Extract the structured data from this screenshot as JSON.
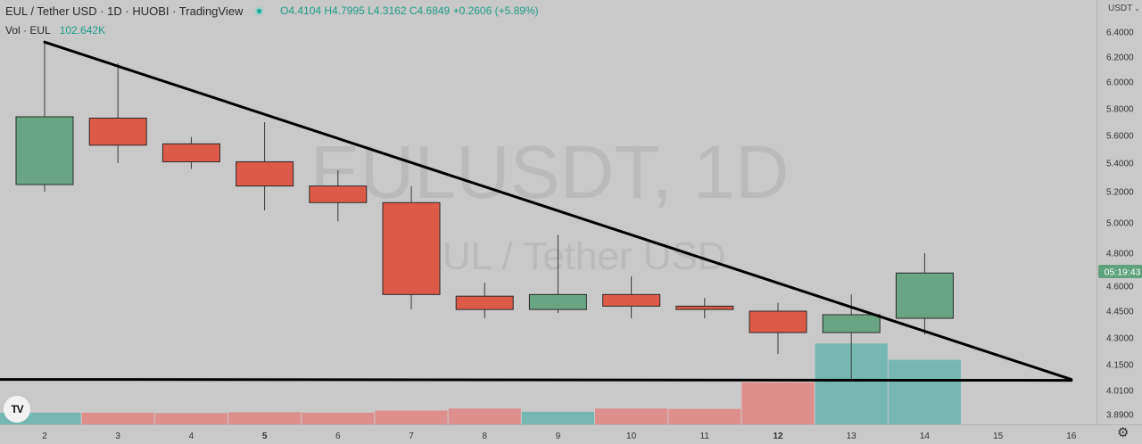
{
  "header": {
    "symbol_line": "EUL / Tether USD · 1D · HUOBI · TradingView",
    "open": "O4.4104",
    "high": "H4.7995",
    "low": "L4.3162",
    "close": "C4.6849",
    "change": "+0.2606 (+5.89%)",
    "volume_label": "Vol · EUL",
    "volume_value": "102.642K"
  },
  "currency": "USDT",
  "price_tag": "05:19:43",
  "watermark": {
    "line1": "EULUSDT, 1D",
    "line2": "EUL / Tether USD"
  },
  "logo_text": "TV",
  "colors": {
    "background": "#c9c9c9",
    "up": "#6aa583",
    "down": "#de5a48",
    "vol_up": "#76b7b2",
    "vol_down": "#de8f8d",
    "trendline": "#000000",
    "price_tag": "#5da27c"
  },
  "chart_data": {
    "type": "candlestick",
    "x_tick_labels": [
      "2",
      "3",
      "4",
      "5",
      "6",
      "7",
      "8",
      "9",
      "10",
      "11",
      "12",
      "13",
      "14",
      "15",
      "16"
    ],
    "x_tick_bold": [
      "5",
      "12"
    ],
    "y_tick_labels": [
      "6.4000",
      "6.2000",
      "6.0000",
      "5.8000",
      "5.6000",
      "5.4000",
      "5.2000",
      "5.0000",
      "4.8000",
      "4.6000",
      "4.4500",
      "4.3000",
      "4.1500",
      "4.0100",
      "3.8900"
    ],
    "candles": [
      {
        "day": "2",
        "open": 5.25,
        "high": 6.33,
        "low": 5.2,
        "close": 5.74
      },
      {
        "day": "3",
        "open": 5.73,
        "high": 6.15,
        "low": 5.4,
        "close": 5.53
      },
      {
        "day": "4",
        "open": 5.54,
        "high": 5.59,
        "low": 5.36,
        "close": 5.41
      },
      {
        "day": "5",
        "open": 5.41,
        "high": 5.7,
        "low": 5.08,
        "close": 5.24
      },
      {
        "day": "6",
        "open": 5.24,
        "high": 5.35,
        "low": 5.01,
        "close": 5.13
      },
      {
        "day": "7",
        "open": 5.13,
        "high": 5.24,
        "low": 4.46,
        "close": 4.55
      },
      {
        "day": "8",
        "open": 4.54,
        "high": 4.62,
        "low": 4.41,
        "close": 4.46
      },
      {
        "day": "9",
        "open": 4.46,
        "high": 4.92,
        "low": 4.44,
        "close": 4.55
      },
      {
        "day": "10",
        "open": 4.55,
        "high": 4.66,
        "low": 4.41,
        "close": 4.48
      },
      {
        "day": "11",
        "open": 4.48,
        "high": 4.53,
        "low": 4.41,
        "close": 4.46
      },
      {
        "day": "12",
        "open": 4.45,
        "high": 4.5,
        "low": 4.21,
        "close": 4.33
      },
      {
        "day": "13",
        "open": 4.33,
        "high": 4.55,
        "low": 4.07,
        "close": 4.43
      },
      {
        "day": "14",
        "open": 4.41,
        "high": 4.8,
        "low": 4.32,
        "close": 4.68
      }
    ],
    "volume_relative": [
      0.28,
      0.28,
      0.27,
      0.29,
      0.28,
      0.33,
      0.38,
      0.3,
      0.38,
      0.37,
      1.0,
      1.93,
      1.54
    ],
    "trendlines": [
      {
        "x1": "2",
        "y1": 6.32,
        "x2": "16",
        "y2": 4.07
      },
      {
        "x1": "1",
        "y1": 4.07,
        "x2": "16",
        "y2": 4.065
      }
    ],
    "grid": false,
    "legend": "none"
  }
}
